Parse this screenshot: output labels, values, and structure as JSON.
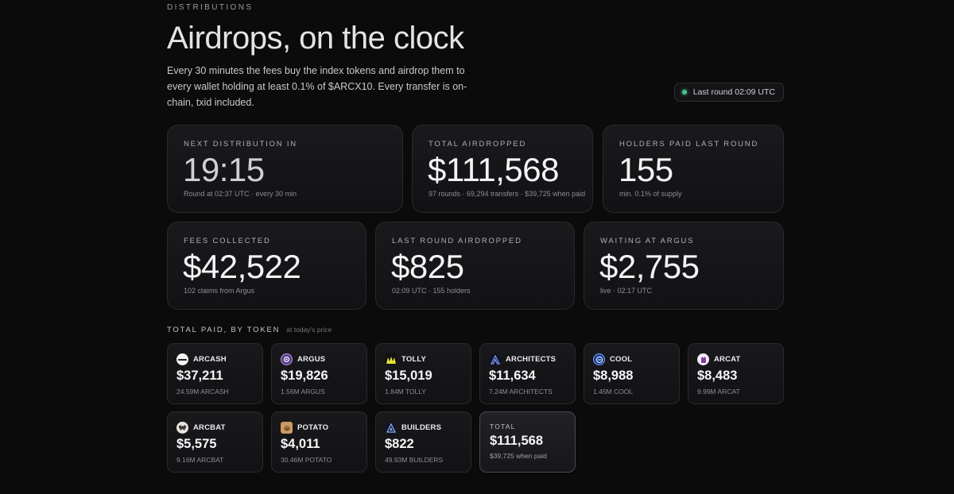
{
  "header": {
    "eyebrow": "DISTRIBUTIONS",
    "title": "Airdrops, on the clock",
    "description": "Every 30 minutes the fees buy the index tokens and airdrop them to every wallet holding at least 0.1% of $ARCX10. Every transfer is on-chain, txid included.",
    "status": "Last round 02:09 UTC",
    "status_color": "#48c78e"
  },
  "stats": {
    "next": {
      "label": "NEXT DISTRIBUTION IN",
      "value": "19:15",
      "sub": "Round at 02:37 UTC · every 30 min"
    },
    "total": {
      "label": "TOTAL AIRDROPPED",
      "value": "$111,568",
      "sub": "97 rounds · 69,294 transfers · $39,725 when paid"
    },
    "holders": {
      "label": "HOLDERS PAID LAST ROUND",
      "value": "155",
      "sub": "min. 0.1% of supply"
    },
    "fees": {
      "label": "FEES COLLECTED",
      "value": "$42,522",
      "sub": "102 claims from Argus"
    },
    "last_round": {
      "label": "LAST ROUND AIRDROPPED",
      "value": "$825",
      "sub": "02:09 UTC · 155 holders"
    },
    "waiting": {
      "label": "WAITING AT ARGUS",
      "value": "$2,755",
      "sub": "live · 02:17 UTC"
    }
  },
  "tokens_section": {
    "title": "TOTAL PAID, BY TOKEN",
    "note": "at today's price"
  },
  "tokens": [
    {
      "name": "ARCASH",
      "usd": "$37,211",
      "amount": "24.59M ARCASH",
      "icon": "arcash-icon"
    },
    {
      "name": "ARGUS",
      "usd": "$19,826",
      "amount": "1.56M ARGUS",
      "icon": "argus-icon"
    },
    {
      "name": "TOLLY",
      "usd": "$15,019",
      "amount": "1.84M TOLLY",
      "icon": "tolly-icon"
    },
    {
      "name": "ARCHITECTS",
      "usd": "$11,634",
      "amount": "7.24M ARCHITECTS",
      "icon": "architects-icon"
    },
    {
      "name": "COOL",
      "usd": "$8,988",
      "amount": "1.45M COOL",
      "icon": "cool-icon"
    },
    {
      "name": "ARCAT",
      "usd": "$8,483",
      "amount": "9.99M ARCAT",
      "icon": "arcat-icon"
    },
    {
      "name": "ARCBAT",
      "usd": "$5,575",
      "amount": "9.16M ARCBAT",
      "icon": "arcbat-icon"
    },
    {
      "name": "POTATO",
      "usd": "$4,011",
      "amount": "30.46M POTATO",
      "icon": "potato-icon"
    },
    {
      "name": "BUILDERS",
      "usd": "$822",
      "amount": "49.93M BUILDERS",
      "icon": "builders-icon"
    }
  ],
  "total_card": {
    "label": "TOTAL",
    "usd": "$111,568",
    "sub": "$39,725 when paid"
  }
}
